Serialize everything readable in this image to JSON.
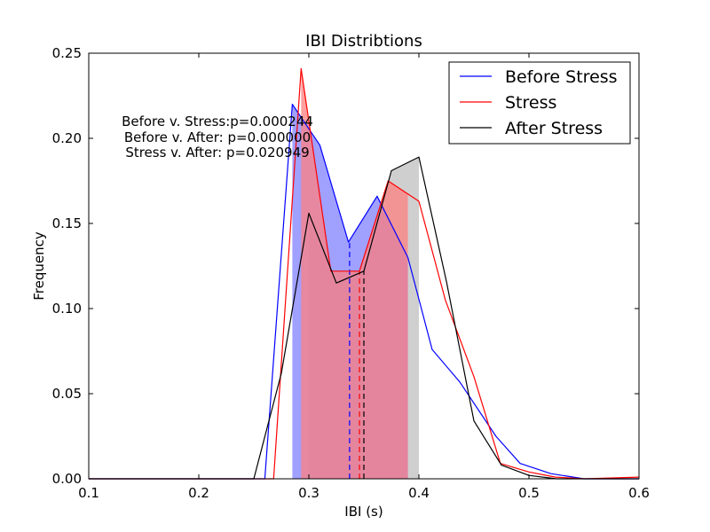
{
  "chart_data": {
    "type": "line",
    "title": "IBI Distribtions",
    "xlabel": "IBI (s)",
    "ylabel": "Frequency",
    "xlim": [
      0.1,
      0.6
    ],
    "ylim": [
      0.0,
      0.25
    ],
    "xticks": [
      "0.1",
      "0.2",
      "0.3",
      "0.4",
      "0.5",
      "0.6"
    ],
    "yticks": [
      "0.00",
      "0.05",
      "0.10",
      "0.15",
      "0.20",
      "0.25"
    ],
    "grid": false,
    "legend": "top-right",
    "annotations": [
      "Before v. Stress:p=0.000244",
      "Before v. After: p=0.000000",
      "Stress v. After: p=0.020949"
    ],
    "series": [
      {
        "name": "Before Stress",
        "color": "#0000ff",
        "fill": "#8080ff",
        "fill_range": [
          0.285,
          0.39
        ],
        "median": 0.337,
        "x": [
          0.1,
          0.26,
          0.285,
          0.31,
          0.336,
          0.362,
          0.39,
          0.412,
          0.437,
          0.47,
          0.492,
          0.52,
          0.55,
          0.6
        ],
        "y": [
          0.0,
          0.0,
          0.22,
          0.196,
          0.139,
          0.166,
          0.13,
          0.076,
          0.057,
          0.025,
          0.009,
          0.003,
          0.0,
          0.0
        ]
      },
      {
        "name": "Stress",
        "color": "#ff0000",
        "fill": "#ff8080",
        "fill_range": [
          0.293,
          0.39
        ],
        "median": 0.346,
        "x": [
          0.1,
          0.268,
          0.293,
          0.32,
          0.346,
          0.372,
          0.4,
          0.424,
          0.45,
          0.474,
          0.5,
          0.524,
          0.55,
          0.6
        ],
        "y": [
          0.0,
          0.0,
          0.241,
          0.122,
          0.122,
          0.175,
          0.163,
          0.105,
          0.06,
          0.009,
          0.004,
          0.001,
          0.0,
          0.001
        ]
      },
      {
        "name": "After Stress",
        "color": "#000000",
        "fill": "#bfbfbf",
        "fill_range": [
          0.3,
          0.4
        ],
        "median": 0.35,
        "x": [
          0.1,
          0.25,
          0.275,
          0.3,
          0.325,
          0.35,
          0.375,
          0.4,
          0.425,
          0.45,
          0.475,
          0.5,
          0.525,
          0.55,
          0.6
        ],
        "y": [
          0.0,
          0.0,
          0.062,
          0.156,
          0.115,
          0.122,
          0.181,
          0.189,
          0.116,
          0.034,
          0.008,
          0.002,
          0.0,
          0.0,
          0.0
        ]
      }
    ]
  }
}
